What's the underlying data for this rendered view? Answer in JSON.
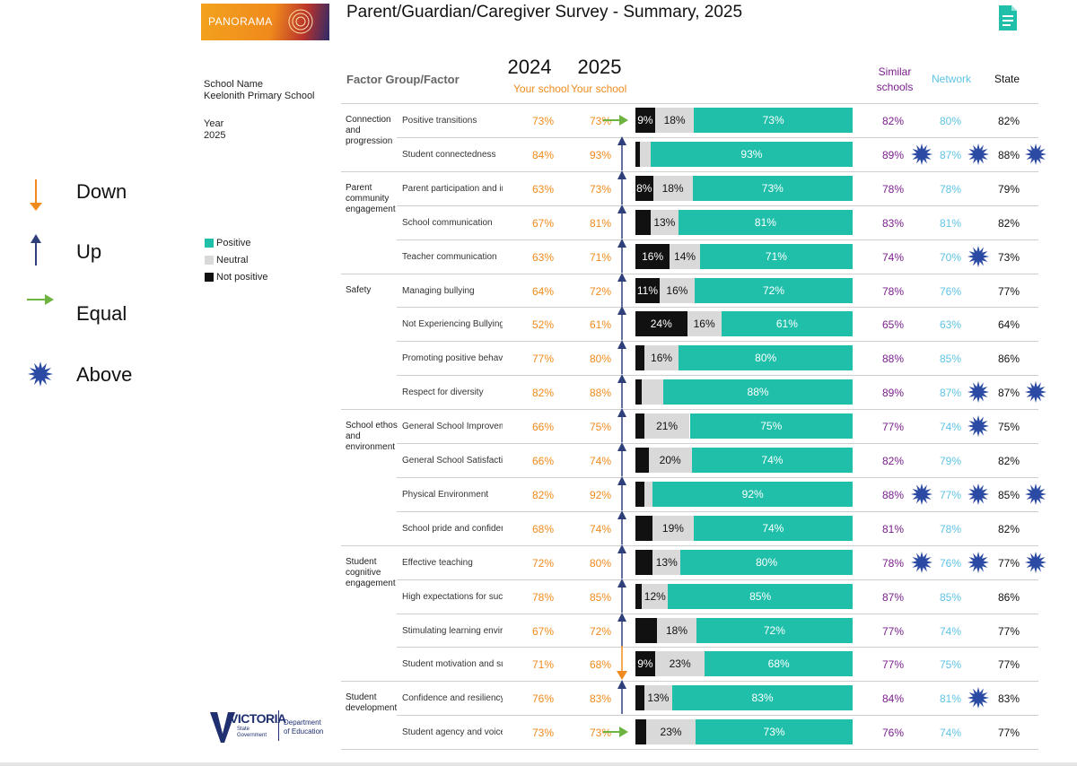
{
  "title": "Parent/Guardian/Caregiver Survey - Summary, 2025",
  "logo_text": "PANORAMA",
  "school": {
    "name_label": "School Name",
    "name": "Keelonith Primary School",
    "year_label": "Year",
    "year": "2025"
  },
  "legend_arrows": [
    {
      "label": "Down",
      "icon": "down-arrow-icon",
      "color": "#f08a1c"
    },
    {
      "label": "Up",
      "icon": "up-arrow-icon",
      "color": "#2f3f7a"
    },
    {
      "label": "Equal",
      "icon": "right-arrow-icon",
      "color": "#6db33f"
    },
    {
      "label": "Above",
      "icon": "star-icon",
      "color": "#2b4aa3"
    }
  ],
  "legend_bars": [
    {
      "label": "Positive",
      "color": "#1fbfaa"
    },
    {
      "label": "Neutral",
      "color": "#d9d9d9"
    },
    {
      "label": "Not positive",
      "color": "#111111"
    }
  ],
  "headers": {
    "factor": "Factor Group/Factor",
    "year1": "2024",
    "year1_sub": "Your school",
    "year2": "2025",
    "year2_sub": "Your school",
    "similar_line1": "Similar",
    "similar_line2": "schools",
    "network": "Network",
    "state": "State"
  },
  "footer": {
    "victoria": "VICTORIA",
    "gov_line1": "State",
    "gov_line2": "Government",
    "dept_line1": "Department",
    "dept_line2": "of Education"
  },
  "chart_data": {
    "type": "table",
    "title": "Parent/Guardian/Caregiver Survey - Summary, 2025",
    "groups": [
      {
        "label": [
          "Connection",
          "and",
          "progression"
        ],
        "rows": [
          0,
          1
        ]
      },
      {
        "label": [
          "Parent",
          "community",
          "engagement"
        ],
        "rows": [
          2,
          3,
          4
        ]
      },
      {
        "label": [
          "Safety"
        ],
        "rows": [
          5,
          6,
          7,
          8
        ]
      },
      {
        "label": [
          "School ethos",
          "and",
          "environment"
        ],
        "rows": [
          9,
          10,
          11,
          12
        ]
      },
      {
        "label": [
          "Student",
          "cognitive",
          "engagement"
        ],
        "rows": [
          13,
          14,
          15,
          16
        ]
      },
      {
        "label": [
          "Student",
          "development"
        ],
        "rows": [
          17,
          18
        ]
      }
    ],
    "rows": [
      {
        "factor": "Positive transitions",
        "y2024": "73%",
        "y2025": "73%",
        "trend": "equal",
        "not_positive": 9,
        "neutral": 18,
        "positive": 73,
        "np_label": "9%",
        "neu_label": "18%",
        "pos_label": "73%",
        "similar": "82%",
        "network": "80%",
        "state": "82%",
        "star_similar": false,
        "star_network": false,
        "star_state": false
      },
      {
        "factor": "Student connectedness",
        "y2024": "84%",
        "y2025": "93%",
        "trend": "up",
        "not_positive": 2,
        "neutral": 5,
        "positive": 93,
        "np_label": "",
        "neu_label": "",
        "pos_label": "93%",
        "similar": "89%",
        "network": "87%",
        "state": "88%",
        "star_similar": true,
        "star_network": true,
        "star_state": true
      },
      {
        "factor": "Parent participation and in",
        "y2024": "63%",
        "y2025": "73%",
        "trend": "up",
        "not_positive": 8,
        "neutral": 18,
        "positive": 73,
        "np_label": "8%",
        "neu_label": "18%",
        "pos_label": "73%",
        "similar": "78%",
        "network": "78%",
        "state": "79%",
        "star_similar": false,
        "star_network": false,
        "star_state": false
      },
      {
        "factor": "School communication",
        "y2024": "67%",
        "y2025": "81%",
        "trend": "up",
        "not_positive": 7,
        "neutral": 13,
        "positive": 81,
        "np_label": "",
        "neu_label": "13%",
        "pos_label": "81%",
        "similar": "83%",
        "network": "81%",
        "state": "82%",
        "star_similar": false,
        "star_network": false,
        "star_state": false
      },
      {
        "factor": "Teacher communication",
        "y2024": "63%",
        "y2025": "71%",
        "trend": "up",
        "not_positive": 16,
        "neutral": 14,
        "positive": 71,
        "np_label": "16%",
        "neu_label": "14%",
        "pos_label": "71%",
        "similar": "74%",
        "network": "70%",
        "state": "73%",
        "star_similar": false,
        "star_network": true,
        "star_state": false
      },
      {
        "factor": "Managing bullying",
        "y2024": "64%",
        "y2025": "72%",
        "trend": "up",
        "not_positive": 11,
        "neutral": 16,
        "positive": 72,
        "np_label": "11%",
        "neu_label": "16%",
        "pos_label": "72%",
        "similar": "78%",
        "network": "76%",
        "state": "77%",
        "star_similar": false,
        "star_network": false,
        "star_state": false
      },
      {
        "factor": "Not Experiencing Bullying",
        "y2024": "52%",
        "y2025": "61%",
        "trend": "up",
        "not_positive": 24,
        "neutral": 16,
        "positive": 61,
        "np_label": "24%",
        "neu_label": "16%",
        "pos_label": "61%",
        "similar": "65%",
        "network": "63%",
        "state": "64%",
        "star_similar": false,
        "star_network": false,
        "star_state": false
      },
      {
        "factor": "Promoting positive behavio",
        "y2024": "77%",
        "y2025": "80%",
        "trend": "up",
        "not_positive": 4,
        "neutral": 16,
        "positive": 80,
        "np_label": "",
        "neu_label": "16%",
        "pos_label": "80%",
        "similar": "88%",
        "network": "85%",
        "state": "86%",
        "star_similar": false,
        "star_network": false,
        "star_state": false
      },
      {
        "factor": "Respect for diversity",
        "y2024": "82%",
        "y2025": "88%",
        "trend": "up",
        "not_positive": 3,
        "neutral": 10,
        "positive": 88,
        "np_label": "",
        "neu_label": "",
        "pos_label": "88%",
        "similar": "89%",
        "network": "87%",
        "state": "87%",
        "star_similar": false,
        "star_network": true,
        "star_state": true
      },
      {
        "factor": "General School Improvem",
        "y2024": "66%",
        "y2025": "75%",
        "trend": "up",
        "not_positive": 4,
        "neutral": 21,
        "positive": 75,
        "np_label": "",
        "neu_label": "21%",
        "pos_label": "75%",
        "similar": "77%",
        "network": "74%",
        "state": "75%",
        "star_similar": false,
        "star_network": true,
        "star_state": false
      },
      {
        "factor": "General School Satisfactio",
        "y2024": "66%",
        "y2025": "74%",
        "trend": "up",
        "not_positive": 6,
        "neutral": 20,
        "positive": 74,
        "np_label": "",
        "neu_label": "20%",
        "pos_label": "74%",
        "similar": "82%",
        "network": "79%",
        "state": "82%",
        "star_similar": false,
        "star_network": false,
        "star_state": false
      },
      {
        "factor": "Physical Environment",
        "y2024": "82%",
        "y2025": "92%",
        "trend": "up",
        "not_positive": 4,
        "neutral": 4,
        "positive": 92,
        "np_label": "",
        "neu_label": "",
        "pos_label": "92%",
        "similar": "88%",
        "network": "77%",
        "state": "85%",
        "star_similar": true,
        "star_network": true,
        "star_state": true
      },
      {
        "factor": "School pride and confiden",
        "y2024": "68%",
        "y2025": "74%",
        "trend": "up",
        "not_positive": 8,
        "neutral": 19,
        "positive": 74,
        "np_label": "",
        "neu_label": "19%",
        "pos_label": "74%",
        "similar": "81%",
        "network": "78%",
        "state": "82%",
        "star_similar": false,
        "star_network": false,
        "star_state": false
      },
      {
        "factor": "Effective teaching",
        "y2024": "72%",
        "y2025": "80%",
        "trend": "up",
        "not_positive": 8,
        "neutral": 13,
        "positive": 80,
        "np_label": "",
        "neu_label": "13%",
        "pos_label": "80%",
        "similar": "78%",
        "network": "76%",
        "state": "77%",
        "star_similar": true,
        "star_network": true,
        "star_state": true
      },
      {
        "factor": "High expectations for succ",
        "y2024": "78%",
        "y2025": "85%",
        "trend": "up",
        "not_positive": 3,
        "neutral": 12,
        "positive": 85,
        "np_label": "",
        "neu_label": "12%",
        "pos_label": "85%",
        "similar": "87%",
        "network": "85%",
        "state": "86%",
        "star_similar": false,
        "star_network": false,
        "star_state": false
      },
      {
        "factor": "Stimulating learning enviro",
        "y2024": "67%",
        "y2025": "72%",
        "trend": "up",
        "not_positive": 10,
        "neutral": 18,
        "positive": 72,
        "np_label": "",
        "neu_label": "18%",
        "pos_label": "72%",
        "similar": "77%",
        "network": "74%",
        "state": "77%",
        "star_similar": false,
        "star_network": false,
        "star_state": false
      },
      {
        "factor": "Student motivation and su",
        "y2024": "71%",
        "y2025": "68%",
        "trend": "down",
        "not_positive": 9,
        "neutral": 23,
        "positive": 68,
        "np_label": "9%",
        "neu_label": "23%",
        "pos_label": "68%",
        "similar": "77%",
        "network": "75%",
        "state": "77%",
        "star_similar": false,
        "star_network": false,
        "star_state": false
      },
      {
        "factor": "Confidence and resiliency",
        "y2024": "76%",
        "y2025": "83%",
        "trend": "up",
        "not_positive": 4,
        "neutral": 13,
        "positive": 83,
        "np_label": "",
        "neu_label": "13%",
        "pos_label": "83%",
        "similar": "84%",
        "network": "81%",
        "state": "83%",
        "star_similar": false,
        "star_network": true,
        "star_state": false
      },
      {
        "factor": "Student agency and voice",
        "y2024": "73%",
        "y2025": "73%",
        "trend": "equal",
        "not_positive": 5,
        "neutral": 23,
        "positive": 73,
        "np_label": "",
        "neu_label": "23%",
        "pos_label": "73%",
        "similar": "76%",
        "network": "74%",
        "state": "77%",
        "star_similar": false,
        "star_network": false,
        "star_state": false
      }
    ]
  }
}
